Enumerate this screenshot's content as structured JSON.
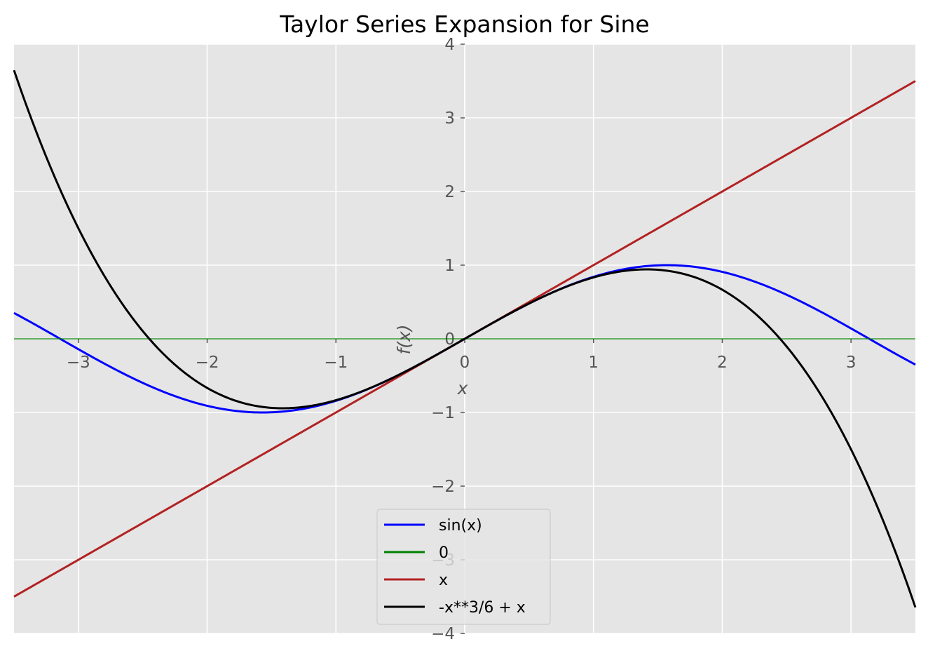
{
  "chart_data": {
    "type": "line",
    "title": "Taylor Series Expansion for Sine",
    "xlabel": "x",
    "ylabel": "f(x)",
    "xlim": [
      -3.5,
      3.5
    ],
    "ylim": [
      -4,
      4
    ],
    "xticks": [
      -3,
      -2,
      -1,
      0,
      1,
      2,
      3
    ],
    "xtick_labels": [
      "−3",
      "−2",
      "−1",
      "0",
      "1",
      "2",
      "3"
    ],
    "yticks": [
      -4,
      -3,
      -2,
      -1,
      0,
      1,
      2,
      3,
      4
    ],
    "ytick_labels": [
      "−4",
      "−3",
      "−2",
      "−1",
      "0",
      "1",
      "2",
      "3",
      "4"
    ],
    "grid": true,
    "spines": "centered",
    "legend_position": "lower center",
    "series": [
      {
        "name": "sin(x)",
        "color": "#0000ff",
        "expression": "sin(x)",
        "x_range": [
          -3.5,
          3.5
        ]
      },
      {
        "name": "0",
        "color": "#008000",
        "expression": "0",
        "x_range": [
          -3.5,
          3.5
        ]
      },
      {
        "name": "x",
        "color": "#b22222",
        "expression": "x",
        "x_range": [
          -3.5,
          3.5
        ]
      },
      {
        "name": "-x**3/6 + x",
        "color": "#000000",
        "expression": "-x**3/6 + x",
        "x_range": [
          -3.5,
          3.5
        ]
      }
    ]
  }
}
